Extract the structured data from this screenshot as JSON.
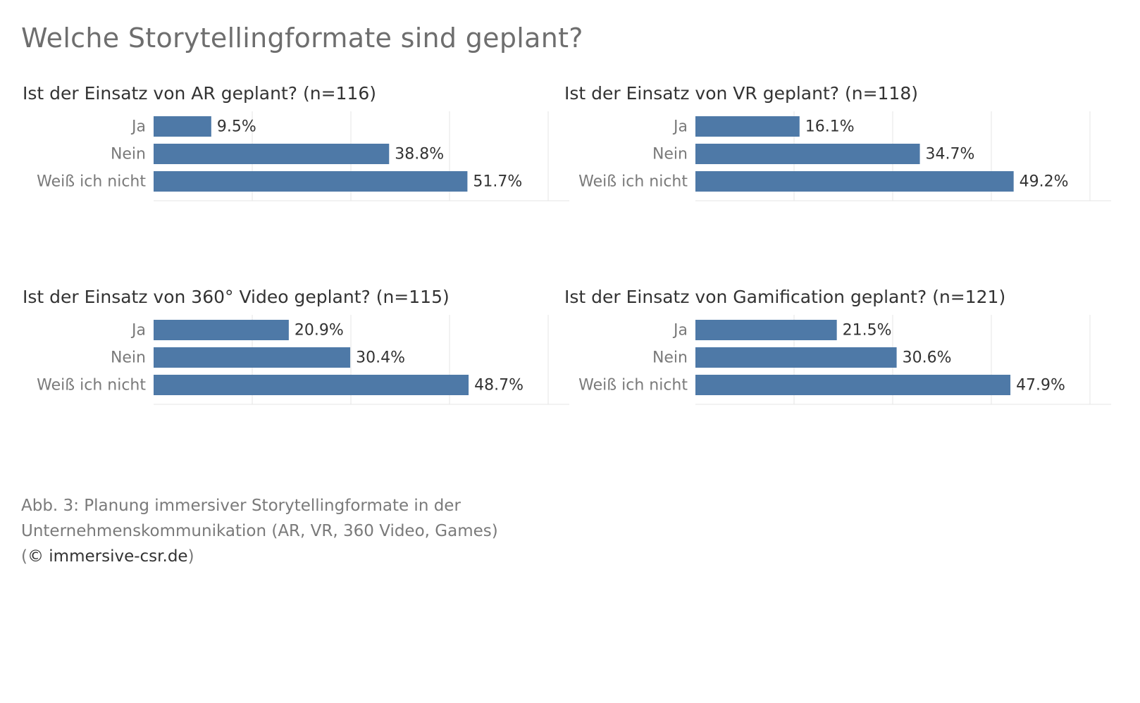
{
  "title": "Welche Storytellingformate sind geplant?",
  "colors": {
    "bar": "#4e79a7",
    "grid": "#e6e6e6",
    "category_text": "#7a7a7a",
    "value_text": "#333333"
  },
  "chart_data": [
    {
      "type": "bar",
      "orientation": "horizontal",
      "title": "Ist der Einsatz von AR geplant? (n=116)",
      "categories": [
        "Ja",
        "Nein",
        "Weiß ich nicht"
      ],
      "values": [
        9.5,
        38.8,
        51.7
      ],
      "labels": [
        "9.5%",
        "38.8%",
        "51.7%"
      ],
      "unit": "%",
      "xlim": [
        0,
        65
      ],
      "grid": true
    },
    {
      "type": "bar",
      "orientation": "horizontal",
      "title": "Ist der Einsatz von VR geplant? (n=118)",
      "categories": [
        "Ja",
        "Nein",
        "Weiß ich nicht"
      ],
      "values": [
        16.1,
        34.7,
        49.2
      ],
      "labels": [
        "16.1%",
        "34.7%",
        "49.2%"
      ],
      "unit": "%",
      "xlim": [
        0,
        61
      ],
      "grid": true
    },
    {
      "type": "bar",
      "orientation": "horizontal",
      "title": "Ist der Einsatz von 360° Video geplant? (n=115)",
      "categories": [
        "Ja",
        "Nein",
        "Weiß ich nicht"
      ],
      "values": [
        20.9,
        30.4,
        48.7
      ],
      "labels": [
        "20.9%",
        "30.4%",
        "48.7%"
      ],
      "unit": "%",
      "xlim": [
        0,
        61
      ],
      "grid": true
    },
    {
      "type": "bar",
      "orientation": "horizontal",
      "title": "Ist der Einsatz von Gamification geplant? (n=121)",
      "categories": [
        "Ja",
        "Nein",
        "Weiß ich nicht"
      ],
      "values": [
        21.5,
        30.6,
        47.9
      ],
      "labels": [
        "21.5%",
        "30.6%",
        "47.9%"
      ],
      "unit": "%",
      "xlim": [
        0,
        60
      ],
      "grid": true
    }
  ],
  "caption": {
    "line1": "Abb. 3: Planung immersiver Storytellingformate in der",
    "line2": "Unternehmenskommunikation (AR, VR, 360 Video, Games)",
    "line3_open": "(",
    "line3_domain": "© immersive-csr.de",
    "line3_close": ")"
  }
}
